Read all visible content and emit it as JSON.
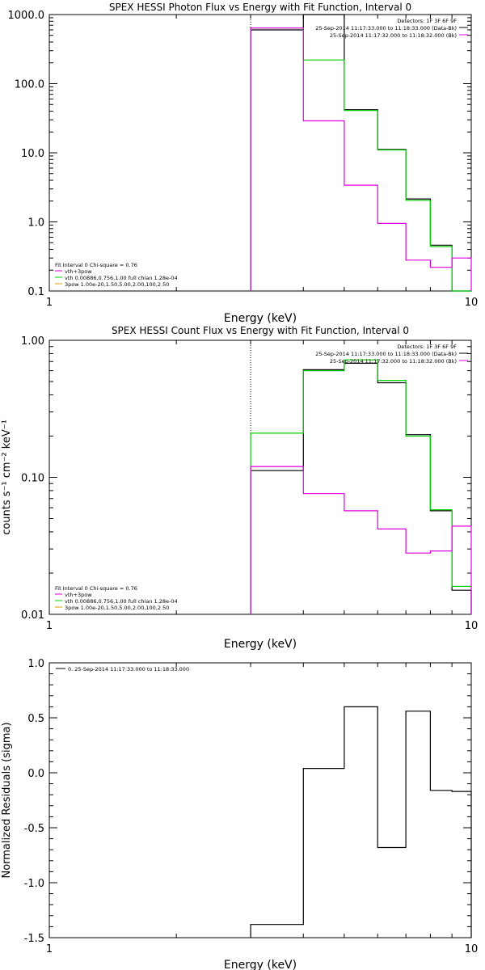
{
  "colors": {
    "data": "#000000",
    "fit": "#00d000",
    "residual_fit": "#e000e0",
    "bg": "#ffffff"
  },
  "chart_data": [
    {
      "type": "line",
      "title": "SPEX HESSI Photon Flux vs Energy with Fit Function, Interval 0",
      "xlabel": "Energy (keV)",
      "ylabel": "",
      "xscale": "log",
      "yscale": "log",
      "xlim": [
        1,
        10
      ],
      "ylim": [
        0.1,
        1000
      ],
      "xticks": [
        "1",
        "10"
      ],
      "yticks": [
        "0.1",
        "1.0",
        "10.0",
        "100.0",
        "1000.0"
      ],
      "vline_x": 3.0,
      "bin_edges": [
        3.0,
        4.0,
        5.0,
        6.0,
        7.0,
        8.0,
        9.0,
        10.0
      ],
      "legend_top": [
        "Detectors: 1F 3F 6F 9F",
        "25-Sep-2014 11:17:33.000 to 11:18:33.000 (Data-Bk)",
        "25-Sep-2014 11:17:32.000 to 11:18:32.000 (Bk)"
      ],
      "legend_top_colors": [
        "",
        "#000000",
        "#e000e0"
      ],
      "legend_bottom": [
        "Fit Interval 0   Chi-square = 0.76",
        "vth+3pow",
        "vth 0.00886,0.756,1.00  full chian 1.28e-04",
        "3pow 1.00e-20,1.50,5.00,2.00,100,2.50"
      ],
      "legend_bottom_colors": [
        "",
        "#e000e0",
        "#00d000",
        "#d0a000"
      ],
      "series": [
        {
          "name": "Data-Bk",
          "color": "#000000",
          "values": [
            600,
            1000,
            42,
            11.2,
            2.15,
            0.46,
            0.09
          ]
        },
        {
          "name": "vth+3pow",
          "color": "#00d000",
          "values": [
            640,
            220,
            41,
            11.0,
            2.05,
            0.44,
            0.1
          ]
        },
        {
          "name": "Bk",
          "color": "#e000e0",
          "values": [
            640,
            29,
            3.4,
            0.95,
            0.28,
            0.22,
            0.3
          ]
        }
      ]
    },
    {
      "type": "line",
      "title": "SPEX HESSI Count Flux vs Energy with Fit Function, Interval 0",
      "xlabel": "Energy (keV)",
      "ylabel": "counts s⁻¹ cm⁻² keV⁻¹",
      "xscale": "log",
      "yscale": "log",
      "xlim": [
        1,
        10
      ],
      "ylim": [
        0.01,
        1.0
      ],
      "xticks": [
        "1",
        "10"
      ],
      "yticks": [
        "0.01",
        "0.10",
        "1.00"
      ],
      "vline_x": 3.0,
      "bin_edges": [
        3.0,
        4.0,
        5.0,
        6.0,
        7.0,
        8.0,
        9.0,
        10.0
      ],
      "legend_top": [
        "Detectors: 1F 3F 6F 9F",
        "25-Sep-2014 11:17:33.000 to 11:18:33.000 (Data-Bk)",
        "25-Sep-2014 11:17:32.000 to 11:18:32.000 (Bk)"
      ],
      "legend_top_colors": [
        "",
        "#000000",
        "#e000e0"
      ],
      "legend_bottom": [
        "Fit Interval 0   Chi-square = 0.76",
        "vth+3pow",
        "vth 0.00886,0.756,1.00  full chian 1.28e-04",
        "3pow 1.00e-20,1.50,5.00,2.00,100,2.50"
      ],
      "legend_bottom_colors": [
        "",
        "#e000e0",
        "#00d000",
        "#d0a000"
      ],
      "series": [
        {
          "name": "Data-Bk",
          "color": "#000000",
          "values": [
            0.112,
            0.61,
            0.68,
            0.49,
            0.205,
            0.057,
            0.015
          ]
        },
        {
          "name": "vth+3pow",
          "color": "#00d000",
          "values": [
            0.21,
            0.6,
            0.72,
            0.51,
            0.2,
            0.058,
            0.016
          ]
        },
        {
          "name": "Bk",
          "color": "#e000e0",
          "values": [
            0.12,
            0.076,
            0.057,
            0.042,
            0.028,
            0.029,
            0.044
          ]
        }
      ]
    },
    {
      "type": "line",
      "title": "",
      "xlabel": "Energy (keV)",
      "ylabel": "Normalized Residuals (sigma)",
      "xscale": "log",
      "yscale": "linear",
      "xlim": [
        1,
        10
      ],
      "ylim": [
        -1.5,
        1.0
      ],
      "xticks": [
        "1",
        "10"
      ],
      "yticks": [
        "-1.5",
        "-1.0",
        "-0.5",
        "0.0",
        "0.5",
        "1.0"
      ],
      "vline_x": null,
      "bin_edges": [
        3.0,
        4.0,
        5.0,
        6.0,
        7.0,
        8.0,
        9.0,
        10.0
      ],
      "legend_top": [
        "0. 25-Sep-2014 11:17:33.000 to 11:18:33.000"
      ],
      "legend_top_colors": [
        "#000000"
      ],
      "legend_bottom": [],
      "legend_bottom_colors": [],
      "series": [
        {
          "name": "0. 25-Sep-2014 11:17:33.000 to 11:18:33.000",
          "color": "#000000",
          "values": [
            -1.38,
            0.04,
            0.6,
            -0.68,
            0.56,
            -0.16,
            -0.17
          ]
        }
      ]
    }
  ]
}
